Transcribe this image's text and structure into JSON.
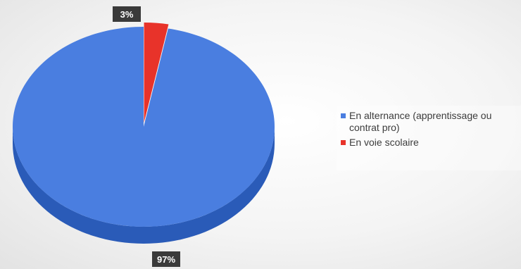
{
  "chart_data": {
    "type": "pie",
    "title": "",
    "categories": [
      "En alternance (apprentissage ou contrat pro)",
      "En voie scolaire"
    ],
    "values": [
      97,
      3
    ],
    "colors": [
      "#4a7ee0",
      "#e8332a"
    ],
    "data_labels": [
      "97%",
      "3%"
    ],
    "legend": "right",
    "style": "3d"
  }
}
